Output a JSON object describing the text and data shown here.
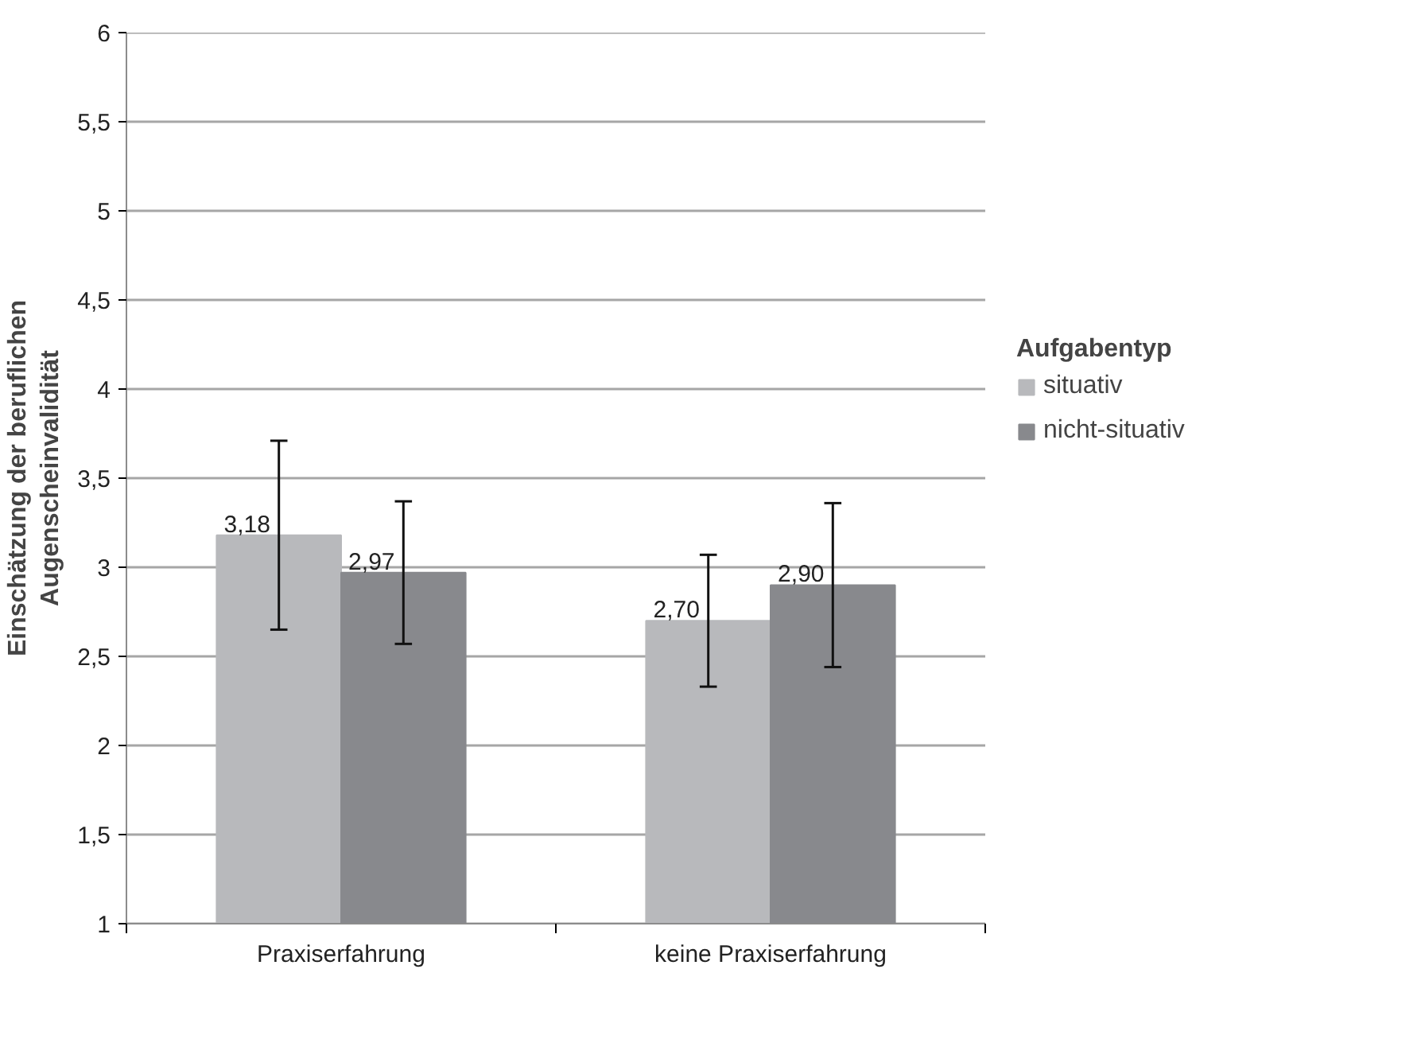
{
  "chart_data": {
    "type": "bar",
    "ylabel": "Einschätzung der beruflichen\nAugenscheinvalidität",
    "legend_title": "Aufgabentyp",
    "categories": [
      "Praxiserfahrung",
      "keine Praxiserfahrung"
    ],
    "series": [
      {
        "name": "situativ",
        "color": "#b8b9bc",
        "values": [
          3.18,
          2.7
        ],
        "errors": [
          0.53,
          0.37
        ],
        "value_labels": [
          "3,18",
          "2,70"
        ]
      },
      {
        "name": "nicht-situativ",
        "color": "#88898d",
        "values": [
          2.97,
          2.9
        ],
        "errors": [
          0.4,
          0.46
        ],
        "value_labels": [
          "2,97",
          "2,90"
        ]
      }
    ],
    "ylim": [
      1,
      6
    ],
    "yticks": [
      1,
      {
        "value": 1.5,
        "label": "1,5"
      },
      2,
      {
        "value": 2.5,
        "label": "2,5"
      },
      3,
      {
        "value": 3.5,
        "label": "3,5"
      },
      4,
      {
        "value": 4.5,
        "label": "4,5"
      },
      5,
      {
        "value": 5.5,
        "label": "5,5"
      },
      6
    ],
    "grid": "y",
    "legend": "right"
  }
}
